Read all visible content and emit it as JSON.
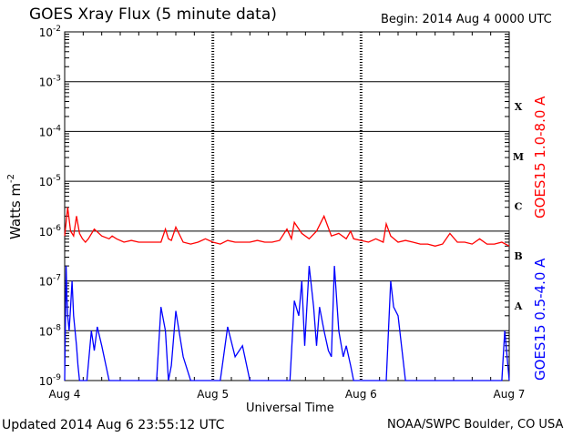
{
  "header": {
    "title": "GOES Xray Flux (5 minute data)",
    "begin": "Begin:  2014 Aug 4 0000 UTC"
  },
  "footer": {
    "updated": "Updated 2014 Aug  6 23:55:12 UTC",
    "credit": "NOAA/SWPC Boulder, CO USA"
  },
  "chart_data": {
    "type": "line",
    "title": "GOES Xray Flux (5 minute data)",
    "xlabel": "Universal Time",
    "ylabel": "Watts m",
    "ylabel_sup": "-2",
    "yscale": "log",
    "ylim": [
      1e-09,
      0.01
    ],
    "xlim": [
      0,
      3
    ],
    "grid": true,
    "x_ticks": [
      {
        "x": 0,
        "label": "Aug 4"
      },
      {
        "x": 1,
        "label": "Aug 5"
      },
      {
        "x": 2,
        "label": "Aug 6"
      },
      {
        "x": 3,
        "label": "Aug 7"
      }
    ],
    "y_ticks": [
      {
        "exp": -2,
        "base": "10",
        "sup": "-2"
      },
      {
        "exp": -3,
        "base": "10",
        "sup": "-3"
      },
      {
        "exp": -4,
        "base": "10",
        "sup": "-4"
      },
      {
        "exp": -5,
        "base": "10",
        "sup": "-5"
      },
      {
        "exp": -6,
        "base": "10",
        "sup": "-6"
      },
      {
        "exp": -7,
        "base": "10",
        "sup": "-7"
      },
      {
        "exp": -8,
        "base": "10",
        "sup": "-8"
      },
      {
        "exp": -9,
        "base": "10",
        "sup": "-9"
      }
    ],
    "flare_classes": [
      {
        "label": "X",
        "exp": -3.5
      },
      {
        "label": "M",
        "exp": -4.5
      },
      {
        "label": "C",
        "exp": -5.5
      },
      {
        "label": "B",
        "exp": -6.5
      },
      {
        "label": "A",
        "exp": -7.5
      }
    ],
    "series": [
      {
        "name": "GOES15 1.0-8.0 A",
        "color": "#ff0000",
        "x": [
          0,
          0.02,
          0.04,
          0.06,
          0.08,
          0.1,
          0.12,
          0.14,
          0.16,
          0.2,
          0.25,
          0.3,
          0.32,
          0.35,
          0.4,
          0.45,
          0.5,
          0.55,
          0.6,
          0.65,
          0.68,
          0.7,
          0.72,
          0.75,
          0.8,
          0.85,
          0.9,
          0.95,
          1.0,
          1.05,
          1.1,
          1.15,
          1.2,
          1.25,
          1.3,
          1.35,
          1.4,
          1.45,
          1.5,
          1.53,
          1.55,
          1.6,
          1.65,
          1.7,
          1.75,
          1.8,
          1.85,
          1.9,
          1.93,
          1.95,
          2.0,
          2.05,
          2.1,
          2.15,
          2.17,
          2.2,
          2.25,
          2.3,
          2.35,
          2.4,
          2.45,
          2.5,
          2.55,
          2.6,
          2.65,
          2.7,
          2.75,
          2.8,
          2.85,
          2.9,
          2.95,
          3.0
        ],
        "y": [
          8e-07,
          3e-06,
          1e-06,
          8e-07,
          2e-06,
          9e-07,
          7e-07,
          6e-07,
          7e-07,
          1.1e-06,
          8e-07,
          7e-07,
          8e-07,
          7e-07,
          6e-07,
          6.5e-07,
          6e-07,
          6e-07,
          6e-07,
          6e-07,
          1.1e-06,
          7e-07,
          6.5e-07,
          1.2e-06,
          6e-07,
          5.5e-07,
          6e-07,
          7e-07,
          6e-07,
          5.5e-07,
          6.5e-07,
          6e-07,
          6e-07,
          6e-07,
          6.5e-07,
          6e-07,
          6e-07,
          6.5e-07,
          1.1e-06,
          7e-07,
          1.5e-06,
          9e-07,
          7e-07,
          1e-06,
          2e-06,
          8e-07,
          9e-07,
          7e-07,
          1e-06,
          7e-07,
          6.5e-07,
          6e-07,
          7e-07,
          6e-07,
          1.4e-06,
          8e-07,
          6e-07,
          6.5e-07,
          6e-07,
          5.5e-07,
          5.5e-07,
          5e-07,
          5.5e-07,
          9e-07,
          6e-07,
          6e-07,
          5.5e-07,
          7e-07,
          5.5e-07,
          5.5e-07,
          6e-07,
          5e-07
        ]
      },
      {
        "name": "GOES15 0.5-4.0 A",
        "color": "#0000ff",
        "x": [
          0,
          0.01,
          0.015,
          0.02,
          0.03,
          0.04,
          0.05,
          0.06,
          0.07,
          0.08,
          0.09,
          0.1,
          0.12,
          0.15,
          0.18,
          0.2,
          0.22,
          0.25,
          0.3,
          0.35,
          0.4,
          0.45,
          0.5,
          0.52,
          0.55,
          0.58,
          0.6,
          0.62,
          0.65,
          0.68,
          0.7,
          0.72,
          0.75,
          0.8,
          0.85,
          0.9,
          0.95,
          1.0,
          1.05,
          1.1,
          1.15,
          1.2,
          1.25,
          1.3,
          1.35,
          1.4,
          1.45,
          1.5,
          1.52,
          1.55,
          1.58,
          1.6,
          1.62,
          1.65,
          1.68,
          1.7,
          1.72,
          1.75,
          1.78,
          1.8,
          1.82,
          1.85,
          1.88,
          1.9,
          1.93,
          1.95,
          2.0,
          2.05,
          2.1,
          2.15,
          2.17,
          2.2,
          2.22,
          2.25,
          2.3,
          2.35,
          2.4,
          2.45,
          2.5,
          2.55,
          2.6,
          2.65,
          2.7,
          2.75,
          2.8,
          2.85,
          2.9,
          2.95,
          2.97,
          3.0
        ],
        "y": [
          1e-09,
          2e-07,
          5e-08,
          2e-08,
          1e-08,
          3e-08,
          1e-07,
          2e-08,
          1e-08,
          5e-09,
          2e-09,
          1e-09,
          1e-09,
          1e-09,
          1e-08,
          4e-09,
          1.2e-08,
          5e-09,
          1e-09,
          1e-09,
          1e-09,
          1e-09,
          1e-09,
          1e-09,
          1e-09,
          1e-09,
          1e-09,
          1e-09,
          3e-08,
          1e-08,
          1e-09,
          2e-09,
          2.5e-08,
          3e-09,
          1e-09,
          1e-09,
          1e-09,
          1e-09,
          1e-09,
          1.2e-08,
          3e-09,
          5e-09,
          1e-09,
          1e-09,
          1e-09,
          1e-09,
          1e-09,
          1e-09,
          1e-09,
          4e-08,
          2e-08,
          1e-07,
          5e-09,
          2e-07,
          3e-08,
          5e-09,
          3e-08,
          1e-08,
          4e-09,
          3e-09,
          2e-07,
          1e-08,
          3e-09,
          5e-09,
          2e-09,
          1e-09,
          1e-09,
          1e-09,
          1e-09,
          1e-09,
          1e-09,
          1e-07,
          3e-08,
          2e-08,
          1e-09,
          1e-09,
          1e-09,
          1e-09,
          1e-09,
          1e-09,
          1e-09,
          1e-09,
          1e-09,
          1e-09,
          1e-09,
          1e-09,
          1e-09,
          1e-09,
          1e-08,
          1e-09
        ]
      }
    ]
  }
}
